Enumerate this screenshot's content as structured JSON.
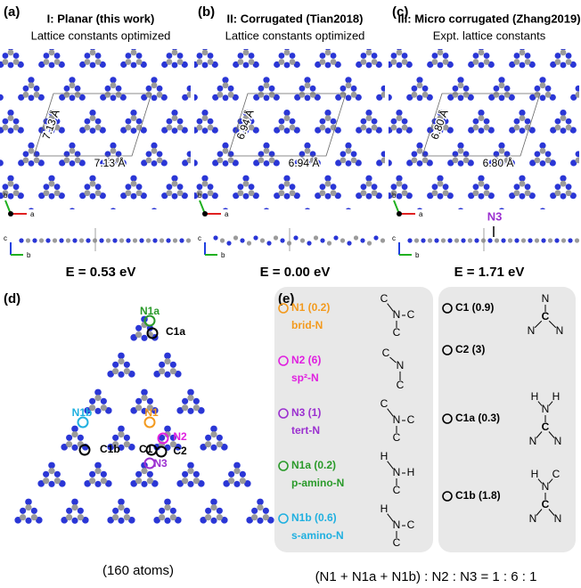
{
  "panels": [
    {
      "label": "(a)",
      "title": "I: Planar (this work)",
      "subtitle": "Lattice constants optimized",
      "lattice_a": "7.13 Å",
      "lattice_b": "7.13 Å",
      "energy": "E = 0.53 eV",
      "axes_top": [
        "b",
        "a"
      ],
      "axes_side": [
        "c",
        "b"
      ]
    },
    {
      "label": "(b)",
      "title": "II: Corrugated (Tian2018)",
      "subtitle": "Lattice constants optimized",
      "lattice_a": "6.94 Å",
      "lattice_b": "6.94 Å",
      "energy": "E = 0.00 eV",
      "axes_top": [
        "b",
        "a"
      ],
      "axes_side": [
        "c",
        "b"
      ]
    },
    {
      "label": "(c)",
      "title": "III: Micro corrugated (Zhang2019)",
      "subtitle": "Expt. lattice constants",
      "lattice_a": "6.80 Å",
      "lattice_b": "6.80 Å",
      "energy": "E = 1.71 eV",
      "axes_top": [
        "b",
        "a"
      ],
      "axes_side": [
        "c",
        "b"
      ],
      "annotation": "N3"
    }
  ],
  "flake": {
    "label": "(d)",
    "atoms": [
      {
        "name": "N1a",
        "color": "#2a9a2a"
      },
      {
        "name": "C1a",
        "color": "#000000"
      },
      {
        "name": "N1b",
        "color": "#20b0e0"
      },
      {
        "name": "C1b",
        "color": "#000000"
      },
      {
        "name": "N1",
        "color": "#f39a1e"
      },
      {
        "name": "C1",
        "color": "#000000"
      },
      {
        "name": "N2",
        "color": "#e020e0"
      },
      {
        "name": "C2",
        "color": "#000000"
      },
      {
        "name": "N3",
        "color": "#9b30d0"
      }
    ],
    "caption": "(160 atoms)"
  },
  "table": {
    "label": "(e)",
    "nitrogen": [
      {
        "name": "N1 (0.2)",
        "type": "brid-N",
        "color": "#f39a1e",
        "structure": [
          "C",
          "N",
          "C",
          "C"
        ]
      },
      {
        "name": "N2 (6)",
        "type": "sp²-N",
        "color": "#e020e0",
        "structure": [
          "C",
          "N",
          "C"
        ]
      },
      {
        "name": "N3 (1)",
        "type": "tert-N",
        "color": "#9b30d0",
        "structure": [
          "C",
          "N",
          "C",
          "C"
        ]
      },
      {
        "name": "N1a (0.2)",
        "type": "p-amino-N",
        "color": "#2a9a2a",
        "structure": [
          "H",
          "N",
          "H",
          "C"
        ]
      },
      {
        "name": "N1b (0.6)",
        "type": "s-amino-N",
        "color": "#20b0e0",
        "structure": [
          "H",
          "N",
          "C",
          "C"
        ]
      }
    ],
    "carbon": [
      {
        "name": "C1 (0.9)",
        "structure": [
          "N",
          "C",
          "N",
          "N"
        ]
      },
      {
        "name": "C2 (3)",
        "structure": []
      },
      {
        "name": "C1a (0.3)",
        "structure": [
          "H",
          "N",
          "H",
          "C",
          "N",
          "N"
        ]
      },
      {
        "name": "C1b (1.8)",
        "structure": [
          "H",
          "N",
          "C",
          "C",
          "N",
          "N"
        ]
      }
    ],
    "ratio": "(N1 + N1a + N1b) : N2 : N3 = 1 : 6 : 1"
  }
}
